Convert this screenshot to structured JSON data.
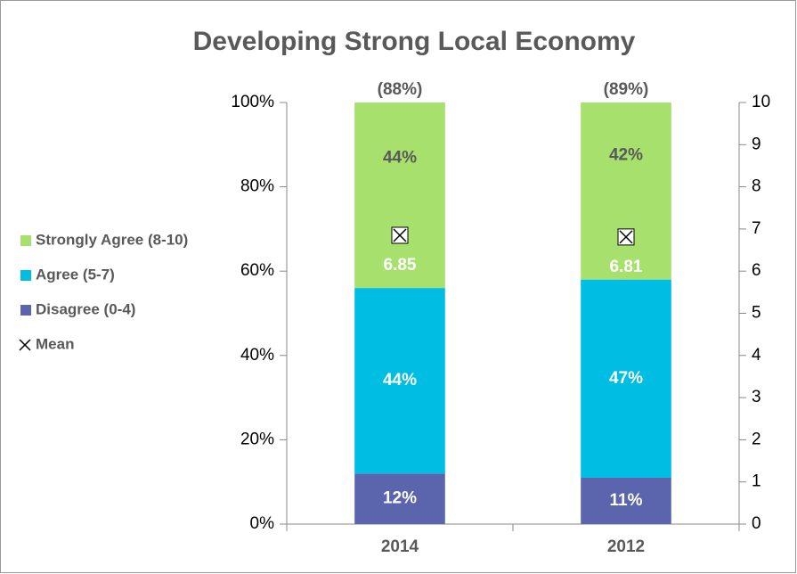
{
  "chart_data": {
    "type": "bar",
    "stacked": true,
    "title": "Developing Strong Local Economy",
    "categories": [
      "2014",
      "2012"
    ],
    "series": [
      {
        "name": "Disagree (0-4)",
        "color": "#5a65ad",
        "values": [
          12,
          11
        ],
        "value_labels": [
          "12%",
          "11%"
        ]
      },
      {
        "name": "Agree (5-7)",
        "color": "#00bde3",
        "values": [
          44,
          47
        ],
        "value_labels": [
          "44%",
          "47%"
        ]
      },
      {
        "name": "Strongly Agree (8-10)",
        "color": "#a8e06d",
        "values": [
          44,
          42
        ],
        "value_labels": [
          "44%",
          "42%"
        ]
      },
      {
        "name": "Mean",
        "type": "scatter",
        "axis": "y2",
        "color": "#000000",
        "values": [
          6.85,
          6.81
        ]
      }
    ],
    "annotations": [
      "(88%)",
      "(89%)"
    ],
    "ylim": [
      0,
      100
    ],
    "yticks": [
      {
        "value": 0,
        "label": "0%"
      },
      {
        "value": 20,
        "label": "20%"
      },
      {
        "value": 40,
        "label": "40%"
      },
      {
        "value": 60,
        "label": "60%"
      },
      {
        "value": 80,
        "label": "80%"
      },
      {
        "value": 100,
        "label": "100%"
      }
    ],
    "y2lim": [
      0,
      10
    ],
    "y2ticks": [
      0,
      1,
      2,
      3,
      4,
      5,
      6,
      7,
      8,
      9,
      10
    ],
    "legend": "left"
  }
}
